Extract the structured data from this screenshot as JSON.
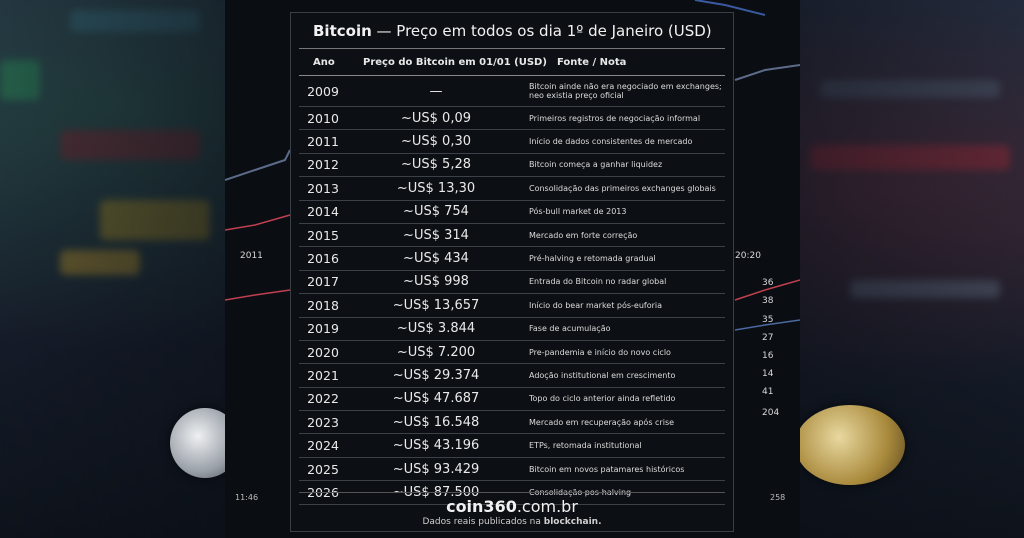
{
  "title": {
    "bold": "Bitcoin",
    "rest": " — Preço em todos os dia 1º de Janeiro (USD)"
  },
  "headers": {
    "year": "Ano",
    "price": "Preço do Bitcoin em 01/01 (USD)",
    "note": "Fonte / Nota"
  },
  "rows": [
    {
      "year": "2009",
      "price": "—",
      "note": "Bitcoin ainde não era negociado em exchanges; neo existia preço oficial"
    },
    {
      "year": "2010",
      "price": "~US$ 0,09",
      "note": "Primeiros registros de negociação informal"
    },
    {
      "year": "2011",
      "price": "~US$ 0,30",
      "note": "Início de dados consistentes de mercado"
    },
    {
      "year": "2012",
      "price": "~US$ 5,28",
      "note": "Bitcoin começa a ganhar liquidez"
    },
    {
      "year": "2013",
      "price": "~US$ 13,30",
      "note": "Consolidação das primeiros exchanges globais"
    },
    {
      "year": "2014",
      "price": "~US$ 754",
      "note": "Pós-bull market de 2013"
    },
    {
      "year": "2015",
      "price": "~US$ 314",
      "note": "Mercado em forte correção"
    },
    {
      "year": "2016",
      "price": "~US$ 434",
      "note": "Pré-halving e retomada gradual"
    },
    {
      "year": "2017",
      "price": "~US$ 998",
      "note": "Entrada do Bitcoin no radar global"
    },
    {
      "year": "2018",
      "price": "~US$ 13,657",
      "note": "Início do bear market pós-euforia"
    },
    {
      "year": "2019",
      "price": "~US$ 3.844",
      "note": "Fase de acumulação"
    },
    {
      "year": "2020",
      "price": "~US$ 7.200",
      "note": "Pre-pandemia e início do novo ciclo"
    },
    {
      "year": "2021",
      "price": "~US$ 29.374",
      "note": "Adoção institutional em crescimento"
    },
    {
      "year": "2022",
      "price": "~US$ 47.687",
      "note": "Topo do ciclo anterior ainda refletido"
    },
    {
      "year": "2023",
      "price": "~US$ 16.548",
      "note": "Mercado em recuperação após crise"
    },
    {
      "year": "2024",
      "price": "~US$ 43.196",
      "note": "ETPs, retomada institutional"
    },
    {
      "year": "2025",
      "price": "~US$ 93.429",
      "note": "Bitcoin em novos patamares históricos"
    },
    {
      "year": "2026",
      "price": "~US$ 87.500",
      "note": "Consolidação pos-halving"
    }
  ],
  "footer": {
    "brand_bold": "coin360",
    "brand_rest": ".com.br",
    "sub_text": "Dados reais publicados na ",
    "sub_bold": "blockchain."
  },
  "background": {
    "axis_labels": [
      "2011",
      "20:20",
      "36",
      "38",
      "35",
      "27",
      "16",
      "14",
      "41",
      "204",
      "11:46",
      "258"
    ]
  }
}
